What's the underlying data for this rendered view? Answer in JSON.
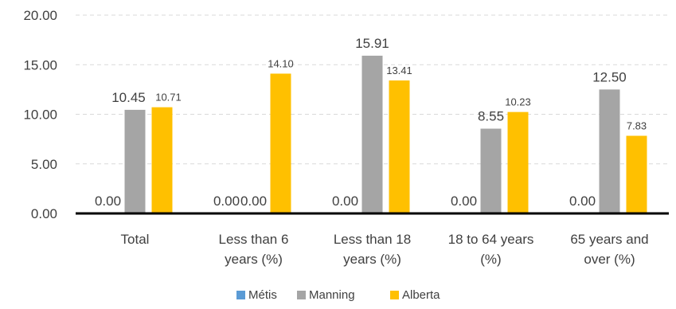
{
  "chart_data": {
    "type": "bar",
    "title": "",
    "xlabel": "",
    "ylabel": "",
    "ylim": [
      0,
      20
    ],
    "yticks": [
      "0.00",
      "5.00",
      "10.00",
      "15.00",
      "20.00"
    ],
    "ytick_values": [
      0,
      5,
      10,
      15,
      20
    ],
    "grid": "horizontal-dashed",
    "legend_position": "bottom-center",
    "categories": [
      [
        "Total"
      ],
      [
        "Less than 6",
        "years (%)"
      ],
      [
        "Less than 18",
        "years (%)"
      ],
      [
        "18 to 64 years",
        "(%)"
      ],
      [
        "65 years and",
        "over (%)"
      ]
    ],
    "series": [
      {
        "name": "Métis",
        "color": "#5B9BD5",
        "values": [
          0,
          0,
          0,
          0,
          0
        ],
        "labels": [
          "0.00",
          "0.00",
          "0.00",
          "0.00",
          "0.00"
        ]
      },
      {
        "name": "Manning",
        "color": "#A5A5A5",
        "values": [
          10.45,
          0,
          15.91,
          8.55,
          12.5
        ],
        "labels": [
          "10.45",
          "0.00",
          "15.91",
          "8.55",
          "12.50"
        ]
      },
      {
        "name": "Alberta",
        "color": "#FFC000",
        "values": [
          10.71,
          14.1,
          13.41,
          10.23,
          7.83
        ],
        "labels": [
          "10.71",
          "14.10",
          "13.41",
          "10.23",
          "7.83"
        ]
      }
    ]
  }
}
